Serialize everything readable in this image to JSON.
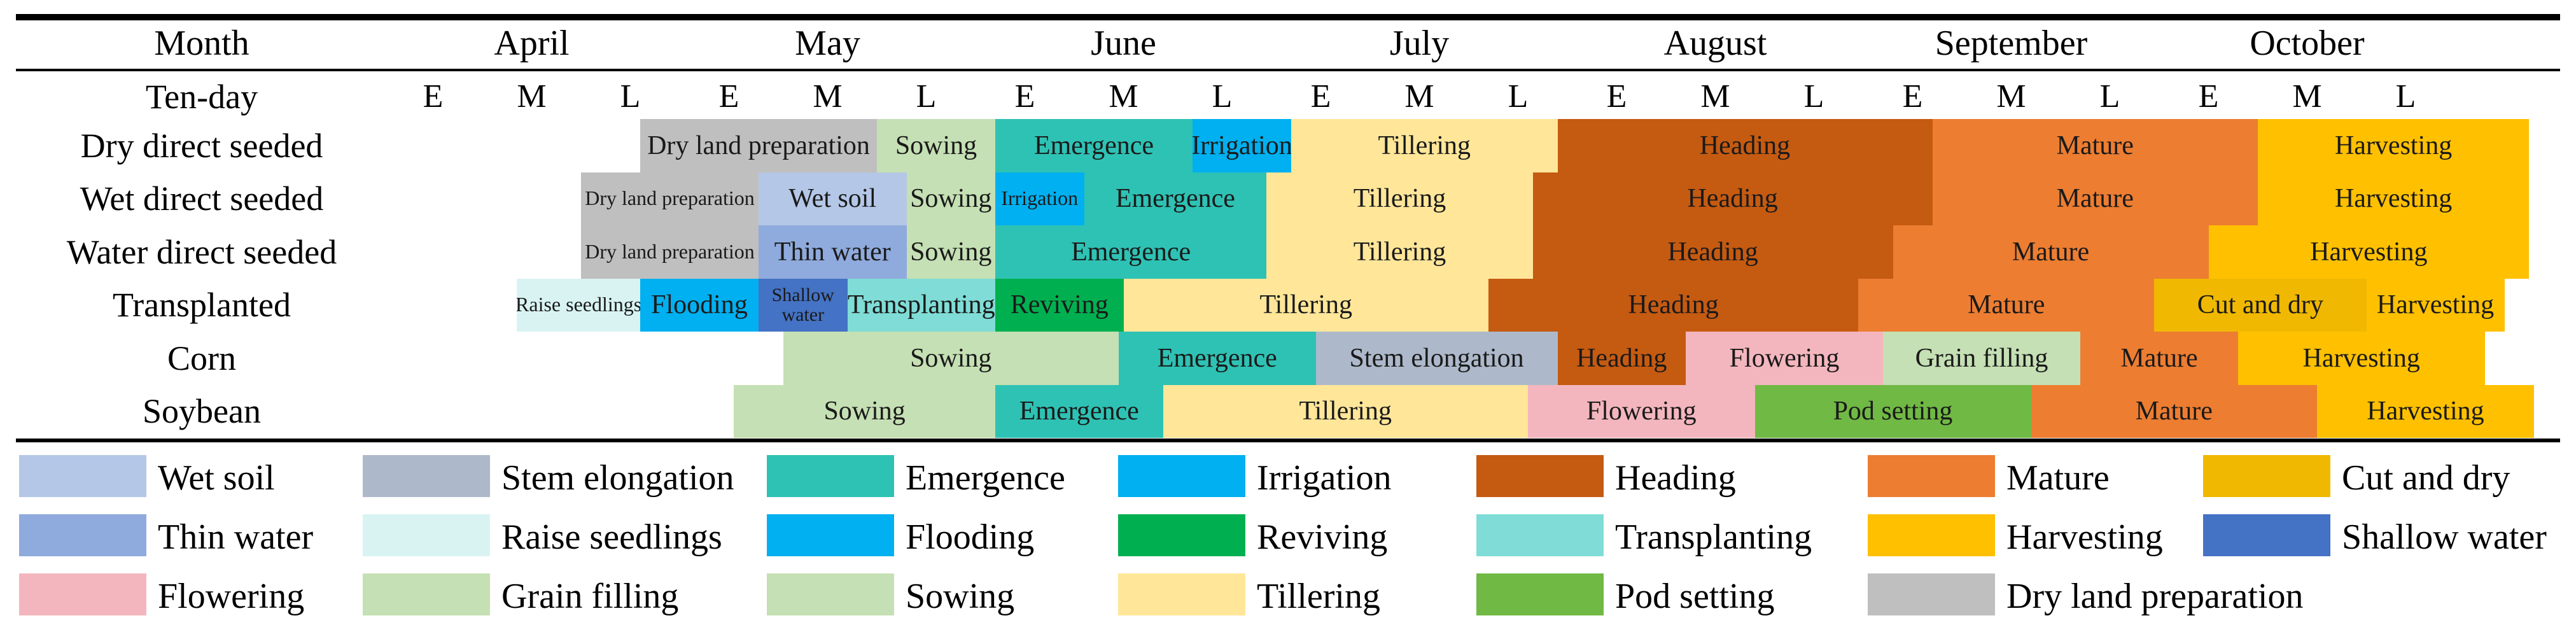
{
  "header": {
    "month_label": "Month",
    "tenday_label": "Ten-day",
    "months": [
      "April",
      "May",
      "June",
      "July",
      "August",
      "September",
      "October"
    ],
    "tendays": [
      "E",
      "M",
      "L",
      "E",
      "M",
      "L",
      "E",
      "M",
      "L",
      "E",
      "M",
      "L",
      "E",
      "M",
      "L",
      "E",
      "M",
      "L",
      "E",
      "M",
      "L"
    ]
  },
  "rows": [
    {
      "label": "Dry direct seeded",
      "segments": [
        {
          "stage": "Dry land preparation",
          "text": "Dry land preparation",
          "start": 2.6,
          "end": 5.0
        },
        {
          "stage": "Sowing",
          "text": "Sowing",
          "start": 5.0,
          "end": 6.2
        },
        {
          "stage": "Emergence",
          "text": "Emergence",
          "start": 6.2,
          "end": 8.2
        },
        {
          "stage": "Irrigation",
          "text": "Irrigation",
          "start": 8.2,
          "end": 9.2
        },
        {
          "stage": "Tillering",
          "text": "Tillering",
          "start": 9.2,
          "end": 11.9
        },
        {
          "stage": "Heading",
          "text": "Heading",
          "start": 11.9,
          "end": 15.7
        },
        {
          "stage": "Mature",
          "text": "Mature",
          "start": 15.7,
          "end": 19.0
        },
        {
          "stage": "Harvesting",
          "text": "Harvesting",
          "start": 19.0,
          "end": 21.75
        }
      ]
    },
    {
      "label": "Wet direct seeded",
      "segments": [
        {
          "stage": "Dry land preparation",
          "text": "Dry land preparation",
          "start": 2.0,
          "end": 3.8,
          "small": true
        },
        {
          "stage": "Wet soil",
          "text": "Wet soil",
          "start": 3.8,
          "end": 5.3
        },
        {
          "stage": "Sowing",
          "text": "Sowing",
          "start": 5.3,
          "end": 6.2
        },
        {
          "stage": "Irrigation",
          "text": "Irrigation",
          "start": 6.2,
          "end": 7.1,
          "small": true
        },
        {
          "stage": "Emergence",
          "text": "Emergence",
          "start": 7.1,
          "end": 8.95
        },
        {
          "stage": "Tillering",
          "text": "Tillering",
          "start": 8.95,
          "end": 11.65
        },
        {
          "stage": "Heading",
          "text": "Heading",
          "start": 11.65,
          "end": 15.7
        },
        {
          "stage": "Mature",
          "text": "Mature",
          "start": 15.7,
          "end": 19.0
        },
        {
          "stage": "Harvesting",
          "text": "Harvesting",
          "start": 19.0,
          "end": 21.75
        }
      ]
    },
    {
      "label": "Water direct seeded",
      "segments": [
        {
          "stage": "Dry land preparation",
          "text": "Dry land preparation",
          "start": 2.0,
          "end": 3.8,
          "small": true
        },
        {
          "stage": "Thin water",
          "text": "Thin water",
          "start": 3.8,
          "end": 5.3
        },
        {
          "stage": "Sowing",
          "text": "Sowing",
          "start": 5.3,
          "end": 6.2
        },
        {
          "stage": "Emergence",
          "text": "Emergence",
          "start": 6.2,
          "end": 8.95
        },
        {
          "stage": "Tillering",
          "text": "Tillering",
          "start": 8.95,
          "end": 11.65
        },
        {
          "stage": "Heading",
          "text": "Heading",
          "start": 11.65,
          "end": 15.3
        },
        {
          "stage": "Mature",
          "text": "Mature",
          "start": 15.3,
          "end": 18.5
        },
        {
          "stage": "Harvesting",
          "text": "Harvesting",
          "start": 18.5,
          "end": 21.75
        }
      ]
    },
    {
      "label": "Transplanted",
      "segments": [
        {
          "stage": "Raise seedlings",
          "text": "Raise seedlings",
          "start": 1.35,
          "end": 2.6,
          "small": true
        },
        {
          "stage": "Flooding",
          "text": "Flooding",
          "start": 2.6,
          "end": 3.8
        },
        {
          "stage": "Shallow water",
          "text": "Shallow water",
          "start": 3.8,
          "end": 4.7,
          "small": true,
          "wrap": true
        },
        {
          "stage": "Transplanting",
          "text": "Transplanting",
          "start": 4.7,
          "end": 6.2
        },
        {
          "stage": "Reviving",
          "text": "Reviving",
          "start": 6.2,
          "end": 7.5
        },
        {
          "stage": "Tillering",
          "text": "Tillering",
          "start": 7.5,
          "end": 11.2
        },
        {
          "stage": "Heading",
          "text": "Heading",
          "start": 11.2,
          "end": 14.95
        },
        {
          "stage": "Mature",
          "text": "Mature",
          "start": 14.95,
          "end": 17.95
        },
        {
          "stage": "Cut and dry",
          "text": "Cut and dry",
          "start": 17.95,
          "end": 20.1
        },
        {
          "stage": "Harvesting",
          "text": "Harvesting",
          "start": 20.1,
          "end": 21.5
        }
      ]
    },
    {
      "label": "Corn",
      "segments": [
        {
          "stage": "Sowing",
          "text": "Sowing",
          "start": 4.05,
          "end": 7.45
        },
        {
          "stage": "Emergence",
          "text": "Emergence",
          "start": 7.45,
          "end": 9.45
        },
        {
          "stage": "Stem elongation",
          "text": "Stem elongation",
          "start": 9.45,
          "end": 11.9
        },
        {
          "stage": "Heading",
          "text": "Heading",
          "start": 11.9,
          "end": 13.2
        },
        {
          "stage": "Flowering",
          "text": "Flowering",
          "start": 13.2,
          "end": 15.2
        },
        {
          "stage": "Grain filling",
          "text": "Grain filling",
          "start": 15.2,
          "end": 17.2
        },
        {
          "stage": "Mature",
          "text": "Mature",
          "start": 17.2,
          "end": 18.8
        },
        {
          "stage": "Harvesting",
          "text": "Harvesting",
          "start": 18.8,
          "end": 21.3
        }
      ]
    },
    {
      "label": "Soybean",
      "segments": [
        {
          "stage": "Sowing",
          "text": "Sowing",
          "start": 3.55,
          "end": 6.2
        },
        {
          "stage": "Emergence",
          "text": "Emergence",
          "start": 6.2,
          "end": 7.9
        },
        {
          "stage": "Tillering",
          "text": "Tillering",
          "start": 7.9,
          "end": 11.6
        },
        {
          "stage": "Flowering",
          "text": "Flowering",
          "start": 11.6,
          "end": 13.9
        },
        {
          "stage": "Pod setting",
          "text": "Pod setting",
          "start": 13.9,
          "end": 16.7
        },
        {
          "stage": "Mature",
          "text": "Mature",
          "start": 16.7,
          "end": 19.6
        },
        {
          "stage": "Harvesting",
          "text": "Harvesting",
          "start": 19.6,
          "end": 21.8
        }
      ]
    }
  ],
  "legend": [
    {
      "label": "Wet soil",
      "color": "#b4c7e7"
    },
    {
      "label": "Stem elongation",
      "color": "#adb9ca"
    },
    {
      "label": "Emergence",
      "color": "#2ec2b4"
    },
    {
      "label": "Irrigation",
      "color": "#00b0f0"
    },
    {
      "label": "Heading",
      "color": "#c55a11"
    },
    {
      "label": "Mature",
      "color": "#ed7d31"
    },
    {
      "label": "Cut and dry",
      "color": "#f0b800"
    },
    {
      "label": "Thin water",
      "color": "#8faadc"
    },
    {
      "label": "Raise seedlings",
      "color": "#d9f3f3"
    },
    {
      "label": "Flooding",
      "color": "#00b0f0"
    },
    {
      "label": "Reviving",
      "color": "#00b050"
    },
    {
      "label": "Transplanting",
      "color": "#7fdcd6"
    },
    {
      "label": "Harvesting",
      "color": "#ffc000"
    },
    {
      "label": "Shallow water",
      "color": "#4472c4"
    },
    {
      "label": "Flowering",
      "color": "#f4b6be"
    },
    {
      "label": "Grain filling",
      "color": "#c5e0b4"
    },
    {
      "label": "Sowing",
      "color": "#c5e0b4"
    },
    {
      "label": "Tillering",
      "color": "#ffe699"
    },
    {
      "label": "Pod setting",
      "color": "#70b944"
    },
    {
      "label": "Dry land preparation",
      "color": "#bfbfbf"
    }
  ],
  "colors": {
    "Wet soil": "#b4c7e7",
    "Thin water": "#8faadc",
    "Flowering": "#f4b6be",
    "Stem elongation": "#adb9ca",
    "Raise seedlings": "#d9f3f3",
    "Grain filling": "#c5e0b4",
    "Emergence": "#2ec2b4",
    "Flooding": "#00b0f0",
    "Sowing": "#c5e0b4",
    "Irrigation": "#00b0f0",
    "Reviving": "#00b050",
    "Tillering": "#ffe699",
    "Heading": "#c55a11",
    "Transplanting": "#7fdcd6",
    "Pod setting": "#70b944",
    "Mature": "#ed7d31",
    "Harvesting": "#ffc000",
    "Dry land preparation": "#bfbfbf",
    "Cut and dry": "#f0b800",
    "Shallow water": "#4472c4"
  }
}
